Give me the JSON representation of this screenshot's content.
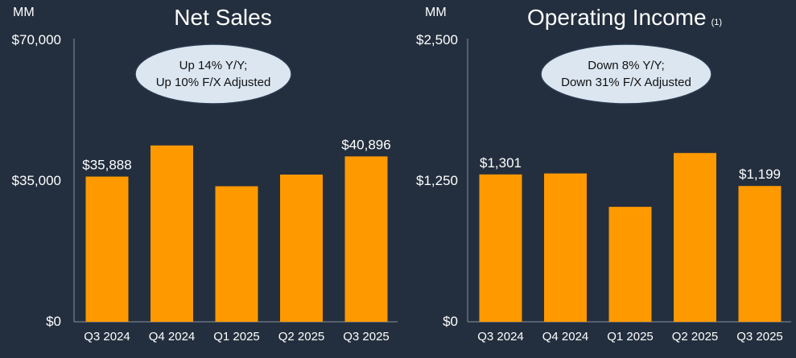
{
  "colors": {
    "background": "#232f3e",
    "bar": "#ff9900",
    "axis": "#8a929c",
    "text": "#ffffff",
    "callout_fill": "#dbe6f1",
    "callout_text": "#111111"
  },
  "chart_data": [
    {
      "type": "bar",
      "title": "Net Sales",
      "unit_label": "MM",
      "categories": [
        "Q3 2024",
        "Q4 2024",
        "Q1 2025",
        "Q2 2025",
        "Q3 2025"
      ],
      "values": [
        35888,
        43600,
        33500,
        36400,
        40896
      ],
      "ylim": [
        0,
        70000
      ],
      "yticks": [
        "$70,000",
        "$35,000",
        "$0"
      ],
      "data_labels": {
        "0": "$35,888",
        "4": "$40,896"
      },
      "callout": [
        "Up 14% Y/Y;",
        "Up 10% F/X Adjusted"
      ]
    },
    {
      "type": "bar",
      "title": "Operating Income",
      "title_note": "(1)",
      "unit_label": "MM",
      "categories": [
        "Q3 2024",
        "Q4 2024",
        "Q1 2025",
        "Q2 2025",
        "Q3 2025"
      ],
      "values": [
        1301,
        1310,
        1015,
        1490,
        1199
      ],
      "ylim": [
        0,
        2500
      ],
      "yticks": [
        "$2,500",
        "$1,250",
        "$0"
      ],
      "data_labels": {
        "0": "$1,301",
        "4": "$1,199"
      },
      "callout": [
        "Down 8% Y/Y;",
        "Down 31% F/X Adjusted"
      ]
    }
  ]
}
